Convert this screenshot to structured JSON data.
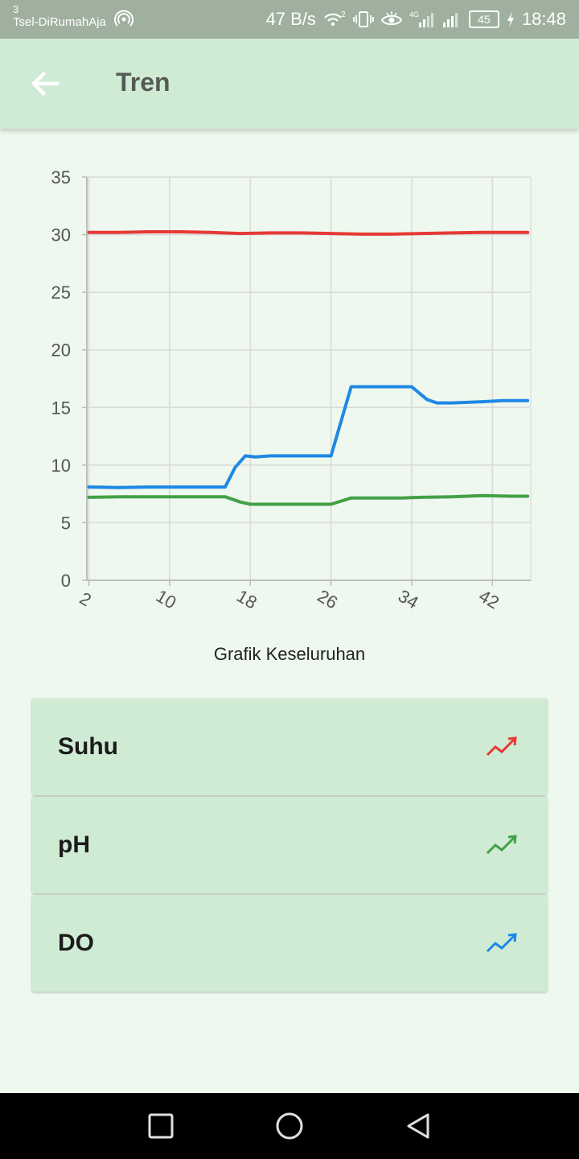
{
  "status_bar": {
    "sim_slot": "3",
    "carrier": "Tsel-DiRumahAja",
    "net_speed": "47 B/s",
    "network_type": "4G",
    "battery": "45",
    "time": "18:48",
    "icons": [
      "hotspot-icon",
      "wifi-calling-icon",
      "vibrate-icon",
      "eye-comfort-icon",
      "signal-icon",
      "battery-icon",
      "charging-icon"
    ]
  },
  "app_bar": {
    "title": "Tren",
    "back_icon": "arrow-left-icon"
  },
  "chart_data": {
    "type": "line",
    "title": "",
    "caption": "Grafik Keseluruhan",
    "xlabel": "",
    "ylabel": "",
    "x_ticks": [
      2,
      10,
      18,
      26,
      34,
      42
    ],
    "y_ticks": [
      0,
      5,
      10,
      15,
      20,
      25,
      30,
      35
    ],
    "xlim": [
      1.8,
      45.8
    ],
    "ylim": [
      0,
      35
    ],
    "grid": true,
    "legend": "none",
    "series": [
      {
        "key": "suhu",
        "color": "#e53935",
        "x": [
          2,
          5,
          8,
          11,
          14,
          17,
          20,
          23,
          26,
          29,
          32,
          35,
          38,
          41,
          44,
          45.5
        ],
        "y": [
          30.2,
          30.2,
          30.25,
          30.25,
          30.2,
          30.1,
          30.15,
          30.15,
          30.1,
          30.05,
          30.05,
          30.1,
          30.15,
          30.2,
          30.2,
          30.2
        ]
      },
      {
        "key": "ph",
        "color": "#43a047",
        "x": [
          2,
          5,
          8,
          11,
          14,
          15.5,
          17,
          18,
          20,
          23,
          26,
          28,
          30,
          33,
          35,
          38,
          41,
          44,
          45.5
        ],
        "y": [
          7.2,
          7.25,
          7.25,
          7.25,
          7.25,
          7.25,
          6.8,
          6.6,
          6.6,
          6.6,
          6.6,
          7.15,
          7.15,
          7.15,
          7.2,
          7.25,
          7.35,
          7.3,
          7.3
        ]
      },
      {
        "key": "do",
        "color": "#1e88e5",
        "x": [
          2,
          5,
          8,
          11,
          14,
          15.5,
          16.5,
          17.5,
          18.5,
          20,
          23,
          26,
          28,
          30,
          34,
          35.5,
          36.5,
          38,
          41,
          43,
          45.5
        ],
        "y": [
          8.1,
          8.05,
          8.1,
          8.1,
          8.1,
          8.1,
          9.8,
          10.8,
          10.7,
          10.8,
          10.8,
          10.8,
          16.8,
          16.8,
          16.8,
          15.7,
          15.4,
          15.4,
          15.5,
          15.6,
          15.6
        ]
      }
    ]
  },
  "cards": [
    {
      "label": "Suhu",
      "icon": "trending-up-icon",
      "color": "#e53935"
    },
    {
      "label": "pH",
      "icon": "trending-up-icon",
      "color": "#43a047"
    },
    {
      "label": "DO",
      "icon": "trending-up-icon",
      "color": "#1e88e5"
    }
  ],
  "nav_bar": {
    "buttons": [
      "recent-apps-icon",
      "home-icon",
      "back-icon"
    ]
  }
}
